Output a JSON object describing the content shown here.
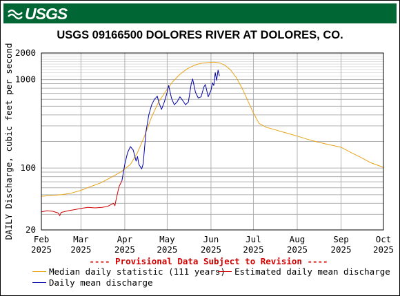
{
  "header": {
    "logo_text": "USGS",
    "title": "USGS 09166500 DOLORES RIVER AT DOLORES, CO.",
    "banner_color": "#006633"
  },
  "chart_data": {
    "type": "line",
    "y_scale": "log",
    "ylabel": "DAILY Discharge, cubic feet per second",
    "ylim": [
      20,
      2000
    ],
    "y_major_ticks": [
      20,
      100,
      1000,
      2000
    ],
    "y_minor_ticks": [
      30,
      40,
      50,
      60,
      70,
      80,
      90,
      200,
      300,
      400,
      500,
      600,
      700,
      800,
      900
    ],
    "xlim": [
      "2025-02-01",
      "2025-10-01"
    ],
    "x_ticks": [
      {
        "date": "2025-02-01",
        "month": "Feb",
        "year": "2025"
      },
      {
        "date": "2025-03-01",
        "month": "Mar",
        "year": "2025"
      },
      {
        "date": "2025-04-01",
        "month": "Apr",
        "year": "2025"
      },
      {
        "date": "2025-05-01",
        "month": "May",
        "year": "2025"
      },
      {
        "date": "2025-06-01",
        "month": "Jun",
        "year": "2025"
      },
      {
        "date": "2025-07-01",
        "month": "Jul",
        "year": "2025"
      },
      {
        "date": "2025-08-01",
        "month": "Aug",
        "year": "2025"
      },
      {
        "date": "2025-09-01",
        "month": "Sep",
        "year": "2025"
      },
      {
        "date": "2025-10-01",
        "month": "Oct",
        "year": "2025"
      }
    ],
    "grid": true,
    "notice": "---- Provisional Data Subject to Revision ----",
    "series": [
      {
        "name": "Median daily statistic (111 years)",
        "color": "#e8a317",
        "points": [
          [
            "2025-02-01",
            48
          ],
          [
            "2025-02-08",
            49
          ],
          [
            "2025-02-15",
            50
          ],
          [
            "2025-02-22",
            52
          ],
          [
            "2025-03-01",
            56
          ],
          [
            "2025-03-08",
            62
          ],
          [
            "2025-03-15",
            68
          ],
          [
            "2025-03-22",
            78
          ],
          [
            "2025-03-29",
            90
          ],
          [
            "2025-04-01",
            98
          ],
          [
            "2025-04-05",
            110
          ],
          [
            "2025-04-10",
            150
          ],
          [
            "2025-04-15",
            230
          ],
          [
            "2025-04-20",
            380
          ],
          [
            "2025-04-25",
            560
          ],
          [
            "2025-05-01",
            780
          ],
          [
            "2025-05-05",
            950
          ],
          [
            "2025-05-10",
            1150
          ],
          [
            "2025-05-15",
            1320
          ],
          [
            "2025-05-20",
            1450
          ],
          [
            "2025-05-25",
            1530
          ],
          [
            "2025-05-30",
            1560
          ],
          [
            "2025-06-03",
            1580
          ],
          [
            "2025-06-07",
            1550
          ],
          [
            "2025-06-11",
            1450
          ],
          [
            "2025-06-15",
            1280
          ],
          [
            "2025-06-19",
            1050
          ],
          [
            "2025-06-23",
            800
          ],
          [
            "2025-06-27",
            580
          ],
          [
            "2025-07-01",
            420
          ],
          [
            "2025-07-05",
            320
          ],
          [
            "2025-07-10",
            290
          ],
          [
            "2025-07-15",
            275
          ],
          [
            "2025-07-22",
            255
          ],
          [
            "2025-08-01",
            230
          ],
          [
            "2025-08-08",
            212
          ],
          [
            "2025-08-15",
            198
          ],
          [
            "2025-08-22",
            186
          ],
          [
            "2025-09-01",
            172
          ],
          [
            "2025-09-08",
            150
          ],
          [
            "2025-09-15",
            132
          ],
          [
            "2025-09-22",
            115
          ],
          [
            "2025-10-01",
            102
          ]
        ]
      },
      {
        "name": "Estimated daily mean discharge",
        "color": "#cc0000",
        "points": [
          [
            "2025-02-01",
            32
          ],
          [
            "2025-02-05",
            33
          ],
          [
            "2025-02-09",
            32.5
          ],
          [
            "2025-02-13",
            31
          ],
          [
            "2025-02-14",
            29
          ],
          [
            "2025-02-15",
            31.5
          ],
          [
            "2025-02-20",
            33
          ],
          [
            "2025-02-25",
            34
          ],
          [
            "2025-03-01",
            35
          ],
          [
            "2025-03-06",
            36
          ],
          [
            "2025-03-11",
            35.5
          ],
          [
            "2025-03-16",
            36
          ],
          [
            "2025-03-20",
            37
          ],
          [
            "2025-03-24",
            40
          ],
          [
            "2025-03-25",
            37.5
          ],
          [
            "2025-03-26",
            45
          ],
          [
            "2025-03-28",
            62
          ],
          [
            "2025-03-30",
            72
          ]
        ]
      },
      {
        "name": "Daily mean discharge",
        "color": "#0000aa",
        "points": [
          [
            "2025-03-30",
            72
          ],
          [
            "2025-04-01",
            110
          ],
          [
            "2025-04-03",
            150
          ],
          [
            "2025-04-05",
            175
          ],
          [
            "2025-04-07",
            160
          ],
          [
            "2025-04-09",
            120
          ],
          [
            "2025-04-10",
            135
          ],
          [
            "2025-04-11",
            110
          ],
          [
            "2025-04-13",
            98
          ],
          [
            "2025-04-14",
            112
          ],
          [
            "2025-04-16",
            260
          ],
          [
            "2025-04-18",
            400
          ],
          [
            "2025-04-20",
            520
          ],
          [
            "2025-04-22",
            600
          ],
          [
            "2025-04-24",
            650
          ],
          [
            "2025-04-25",
            560
          ],
          [
            "2025-04-27",
            460
          ],
          [
            "2025-04-29",
            560
          ],
          [
            "2025-05-01",
            720
          ],
          [
            "2025-05-02",
            860
          ],
          [
            "2025-05-04",
            620
          ],
          [
            "2025-05-06",
            520
          ],
          [
            "2025-05-08",
            560
          ],
          [
            "2025-05-10",
            640
          ],
          [
            "2025-05-12",
            580
          ],
          [
            "2025-05-14",
            520
          ],
          [
            "2025-05-16",
            560
          ],
          [
            "2025-05-18",
            900
          ],
          [
            "2025-05-19",
            1020
          ],
          [
            "2025-05-21",
            720
          ],
          [
            "2025-05-23",
            620
          ],
          [
            "2025-05-25",
            640
          ],
          [
            "2025-05-27",
            830
          ],
          [
            "2025-05-28",
            880
          ],
          [
            "2025-05-30",
            640
          ],
          [
            "2025-06-01",
            760
          ],
          [
            "2025-06-02",
            920
          ],
          [
            "2025-06-03",
            860
          ],
          [
            "2025-06-04",
            1200
          ],
          [
            "2025-06-05",
            980
          ],
          [
            "2025-06-06",
            1280
          ],
          [
            "2025-06-07",
            1100
          ]
        ]
      }
    ]
  }
}
